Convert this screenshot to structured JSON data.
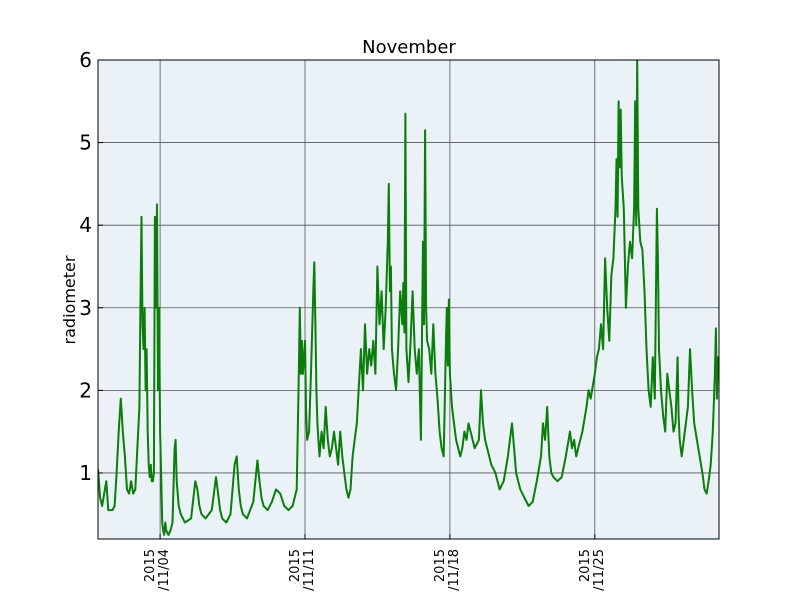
{
  "chart_data": {
    "type": "line",
    "title": "November",
    "xlabel": "",
    "ylabel": "radiometer",
    "ylim": [
      0.2,
      6
    ],
    "xlim_days": [
      1,
      31
    ],
    "y_ticks": [
      1,
      2,
      3,
      4,
      5,
      6
    ],
    "x_ticks": [
      {
        "day": 4,
        "line1": "2015",
        "line2": "/11/04"
      },
      {
        "day": 11,
        "line1": "2015",
        "line2": "/11/11"
      },
      {
        "day": 18,
        "line1": "2015",
        "line2": "/11/18"
      },
      {
        "day": 25,
        "line1": "2015",
        "line2": "/11/25"
      }
    ],
    "grid": true,
    "background": "#eaf2f8",
    "line_color": "#0a7d0a",
    "series": [
      {
        "name": "",
        "points": [
          [
            1.0,
            1.05
          ],
          [
            1.1,
            0.7
          ],
          [
            1.2,
            0.6
          ],
          [
            1.3,
            0.75
          ],
          [
            1.4,
            0.9
          ],
          [
            1.5,
            0.55
          ],
          [
            1.7,
            0.55
          ],
          [
            1.8,
            0.6
          ],
          [
            1.9,
            1.0
          ],
          [
            2.0,
            1.5
          ],
          [
            2.1,
            1.9
          ],
          [
            2.2,
            1.5
          ],
          [
            2.3,
            1.2
          ],
          [
            2.4,
            0.8
          ],
          [
            2.5,
            0.75
          ],
          [
            2.6,
            0.9
          ],
          [
            2.7,
            0.75
          ],
          [
            2.8,
            0.8
          ],
          [
            3.0,
            1.8
          ],
          [
            3.05,
            3.0
          ],
          [
            3.1,
            4.1
          ],
          [
            3.15,
            2.8
          ],
          [
            3.2,
            2.5
          ],
          [
            3.25,
            3.0
          ],
          [
            3.3,
            2.0
          ],
          [
            3.35,
            2.5
          ],
          [
            3.4,
            1.5
          ],
          [
            3.45,
            1.1
          ],
          [
            3.5,
            0.95
          ],
          [
            3.55,
            1.1
          ],
          [
            3.6,
            0.9
          ],
          [
            3.65,
            0.9
          ],
          [
            3.7,
            1.0
          ],
          [
            3.75,
            4.1
          ],
          [
            3.8,
            3.0
          ],
          [
            3.85,
            4.25
          ],
          [
            3.9,
            2.0
          ],
          [
            3.95,
            3.0
          ],
          [
            4.0,
            1.5
          ],
          [
            4.05,
            1.0
          ],
          [
            4.1,
            0.4
          ],
          [
            4.15,
            0.3
          ],
          [
            4.2,
            0.25
          ],
          [
            4.25,
            0.4
          ],
          [
            4.3,
            0.3
          ],
          [
            4.4,
            0.25
          ],
          [
            4.5,
            0.3
          ],
          [
            4.6,
            0.4
          ],
          [
            4.7,
            1.3
          ],
          [
            4.75,
            1.4
          ],
          [
            4.8,
            0.9
          ],
          [
            4.9,
            0.6
          ],
          [
            5.0,
            0.5
          ],
          [
            5.2,
            0.4
          ],
          [
            5.5,
            0.45
          ],
          [
            5.7,
            0.9
          ],
          [
            5.8,
            0.8
          ],
          [
            5.9,
            0.6
          ],
          [
            6.0,
            0.5
          ],
          [
            6.2,
            0.45
          ],
          [
            6.5,
            0.55
          ],
          [
            6.7,
            0.95
          ],
          [
            6.8,
            0.75
          ],
          [
            6.9,
            0.55
          ],
          [
            7.0,
            0.45
          ],
          [
            7.2,
            0.4
          ],
          [
            7.4,
            0.5
          ],
          [
            7.6,
            1.1
          ],
          [
            7.7,
            1.2
          ],
          [
            7.8,
            0.8
          ],
          [
            7.9,
            0.6
          ],
          [
            8.0,
            0.5
          ],
          [
            8.2,
            0.45
          ],
          [
            8.5,
            0.65
          ],
          [
            8.7,
            1.15
          ],
          [
            8.8,
            0.9
          ],
          [
            8.9,
            0.7
          ],
          [
            9.0,
            0.6
          ],
          [
            9.2,
            0.55
          ],
          [
            9.4,
            0.65
          ],
          [
            9.6,
            0.8
          ],
          [
            9.8,
            0.75
          ],
          [
            10.0,
            0.6
          ],
          [
            10.2,
            0.55
          ],
          [
            10.4,
            0.6
          ],
          [
            10.6,
            0.8
          ],
          [
            10.7,
            2.2
          ],
          [
            10.75,
            3.0
          ],
          [
            10.8,
            2.2
          ],
          [
            10.85,
            2.6
          ],
          [
            10.9,
            2.2
          ],
          [
            11.0,
            2.6
          ],
          [
            11.05,
            1.8
          ],
          [
            11.1,
            1.4
          ],
          [
            11.2,
            1.5
          ],
          [
            11.3,
            2.3
          ],
          [
            11.4,
            3.2
          ],
          [
            11.45,
            3.55
          ],
          [
            11.5,
            2.8
          ],
          [
            11.55,
            2.0
          ],
          [
            11.6,
            1.6
          ],
          [
            11.7,
            1.2
          ],
          [
            11.8,
            1.5
          ],
          [
            11.9,
            1.3
          ],
          [
            12.0,
            1.8
          ],
          [
            12.1,
            1.4
          ],
          [
            12.2,
            1.2
          ],
          [
            12.3,
            1.3
          ],
          [
            12.4,
            1.5
          ],
          [
            12.5,
            1.3
          ],
          [
            12.6,
            1.1
          ],
          [
            12.7,
            1.5
          ],
          [
            12.8,
            1.2
          ],
          [
            12.9,
            1.0
          ],
          [
            13.0,
            0.8
          ],
          [
            13.1,
            0.7
          ],
          [
            13.2,
            0.8
          ],
          [
            13.3,
            1.2
          ],
          [
            13.5,
            1.6
          ],
          [
            13.7,
            2.5
          ],
          [
            13.8,
            2.0
          ],
          [
            13.9,
            2.8
          ],
          [
            14.0,
            2.2
          ],
          [
            14.1,
            2.5
          ],
          [
            14.2,
            2.3
          ],
          [
            14.3,
            2.6
          ],
          [
            14.4,
            2.2
          ],
          [
            14.5,
            3.5
          ],
          [
            14.6,
            2.8
          ],
          [
            14.7,
            3.2
          ],
          [
            14.8,
            2.5
          ],
          [
            14.9,
            3.0
          ],
          [
            15.0,
            3.8
          ],
          [
            15.05,
            4.5
          ],
          [
            15.1,
            3.2
          ],
          [
            15.15,
            3.5
          ],
          [
            15.2,
            2.5
          ],
          [
            15.3,
            2.2
          ],
          [
            15.4,
            2.0
          ],
          [
            15.5,
            2.5
          ],
          [
            15.6,
            3.2
          ],
          [
            15.7,
            2.8
          ],
          [
            15.75,
            3.3
          ],
          [
            15.8,
            2.7
          ],
          [
            15.85,
            5.35
          ],
          [
            15.9,
            2.5
          ],
          [
            16.0,
            2.1
          ],
          [
            16.1,
            2.6
          ],
          [
            16.2,
            3.2
          ],
          [
            16.3,
            2.5
          ],
          [
            16.4,
            2.2
          ],
          [
            16.5,
            2.5
          ],
          [
            16.6,
            1.4
          ],
          [
            16.7,
            3.8
          ],
          [
            16.75,
            2.8
          ],
          [
            16.8,
            5.15
          ],
          [
            16.85,
            3.0
          ],
          [
            16.9,
            2.6
          ],
          [
            17.0,
            2.5
          ],
          [
            17.1,
            2.2
          ],
          [
            17.2,
            2.8
          ],
          [
            17.3,
            2.2
          ],
          [
            17.4,
            1.9
          ],
          [
            17.5,
            1.5
          ],
          [
            17.6,
            1.3
          ],
          [
            17.7,
            1.2
          ],
          [
            17.8,
            2.5
          ],
          [
            17.85,
            3.0
          ],
          [
            17.9,
            2.3
          ],
          [
            17.95,
            3.1
          ],
          [
            18.0,
            2.2
          ],
          [
            18.1,
            1.8
          ],
          [
            18.2,
            1.6
          ],
          [
            18.3,
            1.4
          ],
          [
            18.4,
            1.3
          ],
          [
            18.5,
            1.2
          ],
          [
            18.6,
            1.3
          ],
          [
            18.7,
            1.5
          ],
          [
            18.8,
            1.4
          ],
          [
            18.9,
            1.6
          ],
          [
            19.0,
            1.5
          ],
          [
            19.2,
            1.3
          ],
          [
            19.4,
            1.4
          ],
          [
            19.5,
            2.0
          ],
          [
            19.6,
            1.6
          ],
          [
            19.7,
            1.4
          ],
          [
            19.8,
            1.3
          ],
          [
            20.0,
            1.1
          ],
          [
            20.2,
            1.0
          ],
          [
            20.4,
            0.8
          ],
          [
            20.6,
            0.9
          ],
          [
            20.8,
            1.2
          ],
          [
            20.9,
            1.4
          ],
          [
            21.0,
            1.6
          ],
          [
            21.1,
            1.3
          ],
          [
            21.2,
            1.0
          ],
          [
            21.4,
            0.8
          ],
          [
            21.6,
            0.7
          ],
          [
            21.8,
            0.6
          ],
          [
            22.0,
            0.65
          ],
          [
            22.2,
            0.9
          ],
          [
            22.4,
            1.2
          ],
          [
            22.5,
            1.6
          ],
          [
            22.6,
            1.4
          ],
          [
            22.7,
            1.8
          ],
          [
            22.8,
            1.2
          ],
          [
            22.9,
            1.0
          ],
          [
            23.0,
            0.95
          ],
          [
            23.2,
            0.9
          ],
          [
            23.4,
            0.95
          ],
          [
            23.6,
            1.2
          ],
          [
            23.8,
            1.5
          ],
          [
            23.9,
            1.3
          ],
          [
            24.0,
            1.4
          ],
          [
            24.1,
            1.2
          ],
          [
            24.2,
            1.3
          ],
          [
            24.4,
            1.5
          ],
          [
            24.6,
            1.8
          ],
          [
            24.7,
            2.0
          ],
          [
            24.8,
            1.9
          ],
          [
            25.0,
            2.2
          ],
          [
            25.1,
            2.4
          ],
          [
            25.2,
            2.5
          ],
          [
            25.3,
            2.8
          ],
          [
            25.4,
            2.5
          ],
          [
            25.5,
            3.6
          ],
          [
            25.6,
            3.0
          ],
          [
            25.7,
            2.6
          ],
          [
            25.8,
            3.4
          ],
          [
            25.9,
            3.6
          ],
          [
            26.0,
            4.2
          ],
          [
            26.05,
            4.8
          ],
          [
            26.1,
            4.1
          ],
          [
            26.15,
            5.5
          ],
          [
            26.2,
            4.7
          ],
          [
            26.25,
            5.4
          ],
          [
            26.3,
            4.6
          ],
          [
            26.4,
            4.2
          ],
          [
            26.5,
            3.0
          ],
          [
            26.6,
            3.5
          ],
          [
            26.7,
            3.8
          ],
          [
            26.8,
            3.6
          ],
          [
            26.9,
            4.2
          ],
          [
            26.95,
            5.5
          ],
          [
            27.0,
            4.0
          ],
          [
            27.05,
            6.0
          ],
          [
            27.1,
            4.2
          ],
          [
            27.2,
            3.8
          ],
          [
            27.3,
            3.7
          ],
          [
            27.4,
            3.2
          ],
          [
            27.5,
            2.5
          ],
          [
            27.6,
            2.0
          ],
          [
            27.7,
            1.8
          ],
          [
            27.8,
            2.4
          ],
          [
            27.9,
            1.9
          ],
          [
            28.0,
            4.2
          ],
          [
            28.05,
            3.6
          ],
          [
            28.1,
            2.5
          ],
          [
            28.2,
            2.0
          ],
          [
            28.3,
            1.7
          ],
          [
            28.4,
            1.5
          ],
          [
            28.5,
            2.2
          ],
          [
            28.6,
            2.0
          ],
          [
            28.7,
            1.8
          ],
          [
            28.8,
            1.5
          ],
          [
            28.9,
            1.6
          ],
          [
            29.0,
            2.4
          ],
          [
            29.05,
            1.7
          ],
          [
            29.1,
            1.4
          ],
          [
            29.2,
            1.2
          ],
          [
            29.3,
            1.4
          ],
          [
            29.5,
            1.8
          ],
          [
            29.6,
            2.5
          ],
          [
            29.7,
            2.0
          ],
          [
            29.8,
            1.6
          ],
          [
            30.0,
            1.3
          ],
          [
            30.2,
            1.0
          ],
          [
            30.3,
            0.8
          ],
          [
            30.4,
            0.75
          ],
          [
            30.5,
            0.9
          ],
          [
            30.6,
            1.1
          ],
          [
            30.7,
            1.5
          ],
          [
            30.8,
            2.2
          ],
          [
            30.85,
            2.75
          ],
          [
            30.9,
            1.9
          ],
          [
            30.95,
            2.4
          ],
          [
            31.0,
            2.2
          ]
        ]
      }
    ]
  }
}
